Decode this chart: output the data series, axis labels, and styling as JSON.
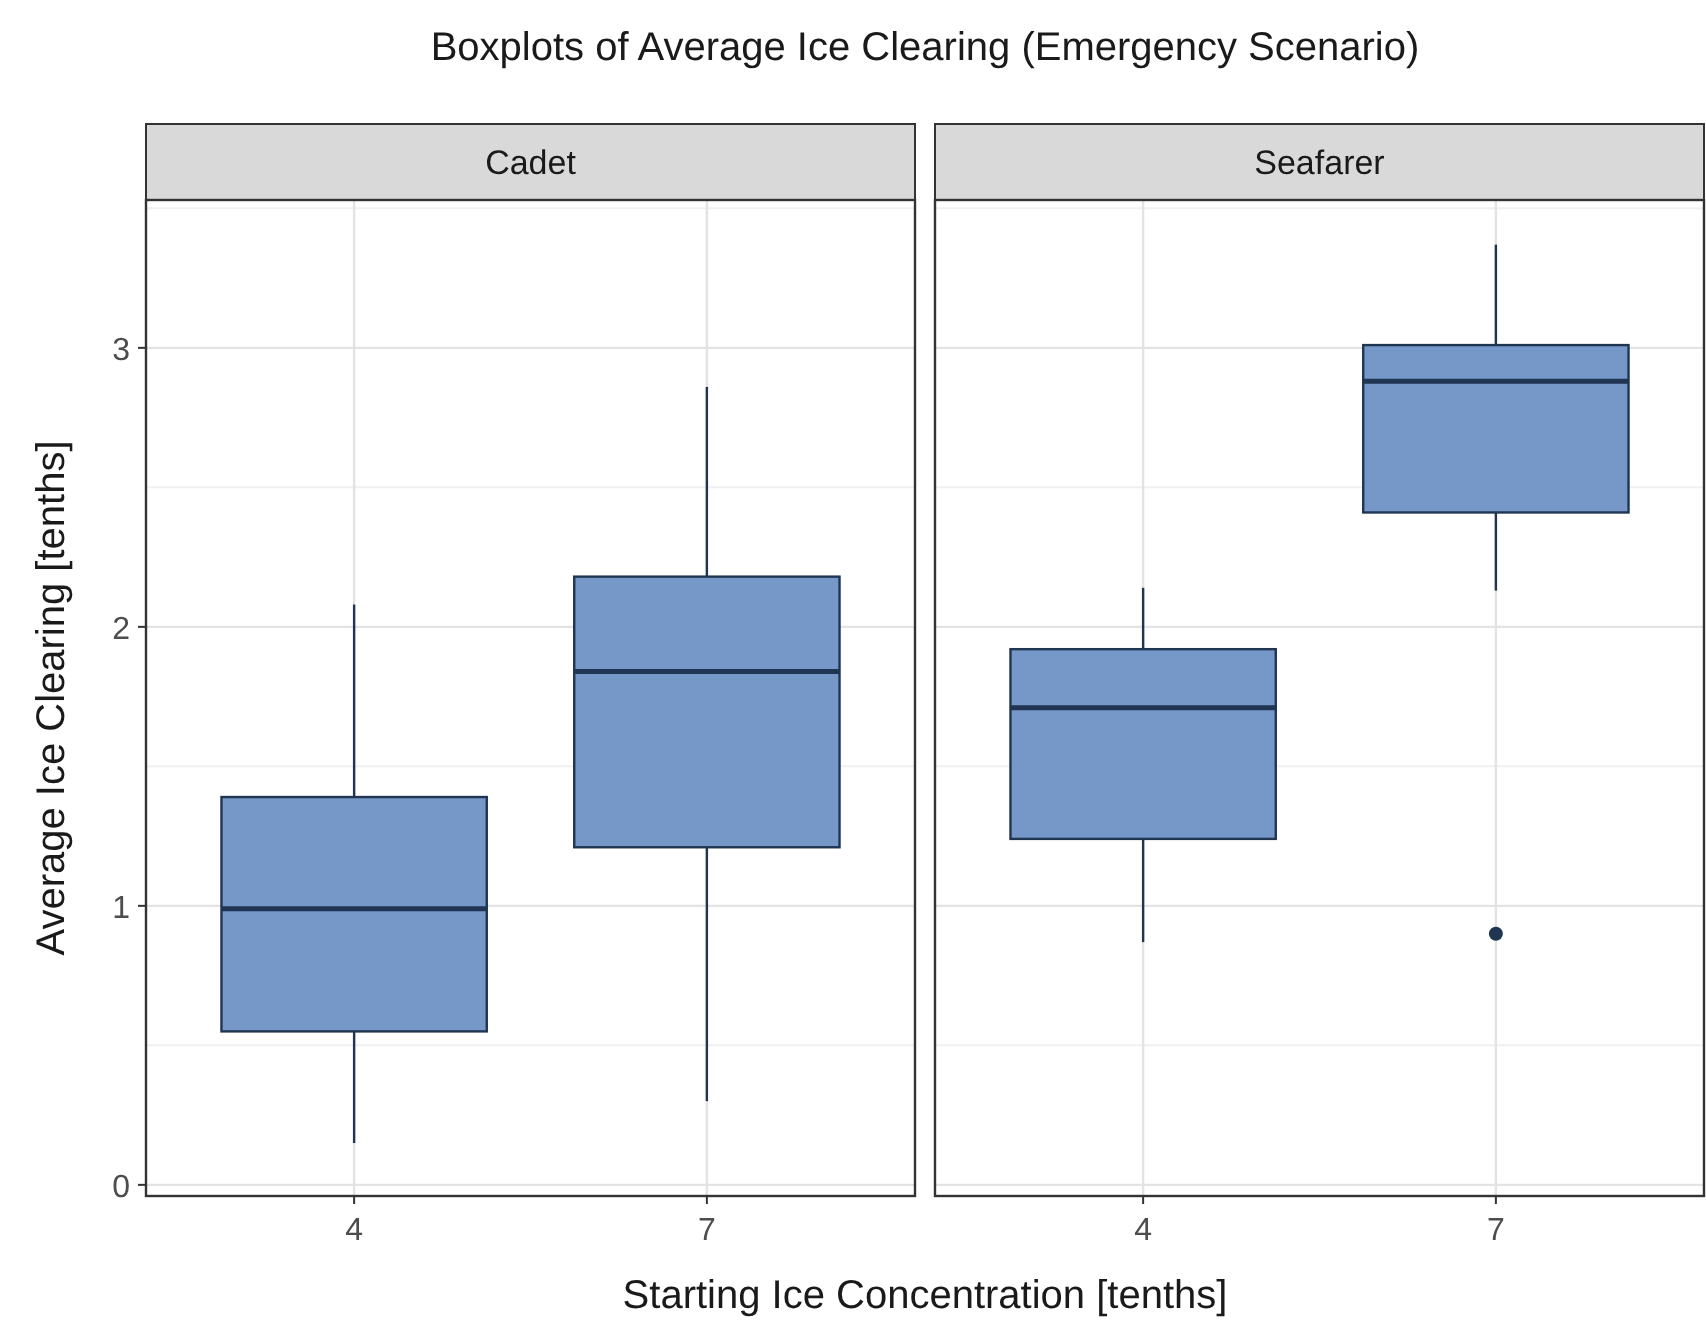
{
  "chart_data": [
    {
      "type": "box",
      "title": "Cadet",
      "annotations": [
        "Boxplots of Average Ice Clearing (Emergency Scenario)"
      ],
      "xlabel": "Starting Ice Concentration [tenths]",
      "ylabel": "Average Ice Clearing [tenths]",
      "categories": [
        "4",
        "7"
      ],
      "ylim": [
        -0.04,
        3.53
      ],
      "yticks": [
        0,
        1,
        2,
        3
      ],
      "grid": true,
      "series": [
        {
          "color": "#7698c8",
          "boxes": [
            {
              "low": 0.15,
              "q1": 0.55,
              "median": 0.99,
              "q3": 1.39,
              "high": 2.08
            },
            {
              "low": 0.3,
              "q1": 1.21,
              "median": 1.84,
              "q3": 2.18,
              "high": 2.86
            }
          ]
        }
      ]
    },
    {
      "type": "box",
      "title": "Seafarer",
      "categories": [
        "4",
        "7"
      ],
      "ylim": [
        -0.04,
        3.53
      ],
      "yticks": [
        0,
        1,
        2,
        3
      ],
      "grid": true,
      "tick_labels": "x",
      "series": [
        {
          "color": "#7698c8",
          "boxes": [
            {
              "low": 0.87,
              "q1": 1.24,
              "median": 1.71,
              "q3": 1.92,
              "high": 2.14
            },
            {
              "low": 2.13,
              "q1": 2.41,
              "median": 2.88,
              "q3": 3.01,
              "high": 3.37,
              "outliers": [
                0.9
              ]
            }
          ]
        }
      ]
    }
  ]
}
